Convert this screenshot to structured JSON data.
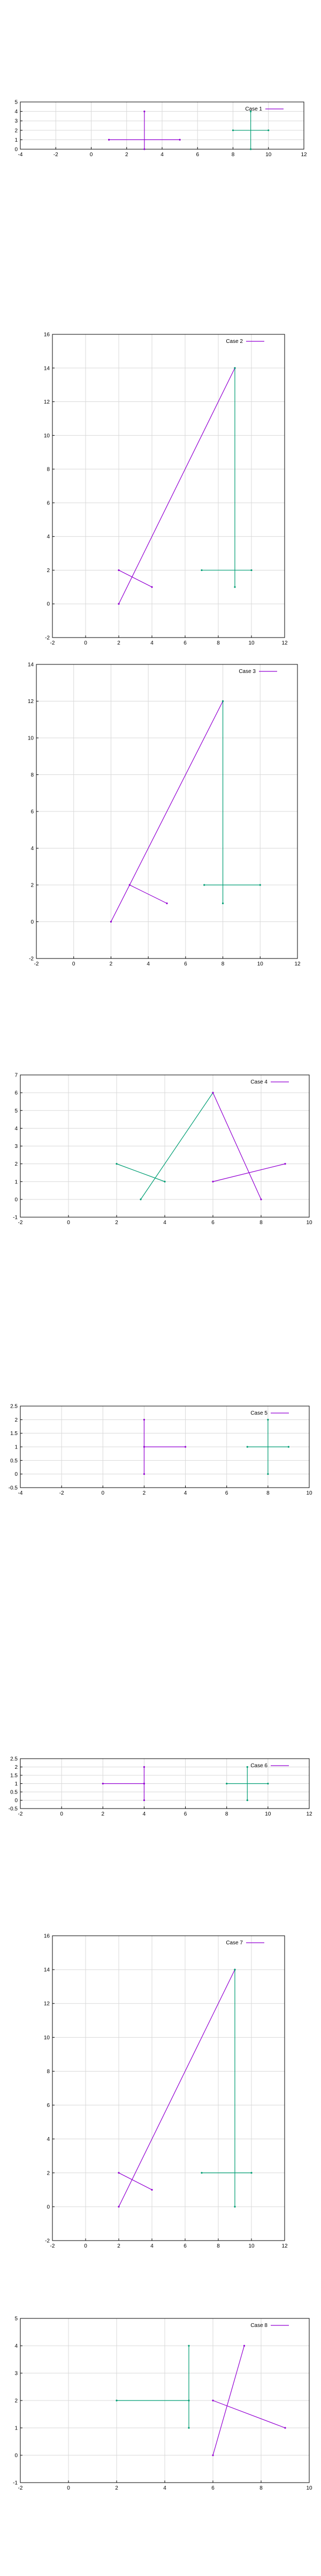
{
  "colors": {
    "magenta": "#9400d3",
    "teal": "#009e73",
    "grid": "#d9d9d9",
    "axis": "#000000"
  },
  "chart_data": [
    {
      "type": "line",
      "title": "Case 1",
      "legend": {
        "entries": [
          "Case 1"
        ],
        "placement": "top-right"
      },
      "xlim": [
        -4,
        12
      ],
      "ylim": [
        0,
        5
      ],
      "xticks": [
        -4,
        -2,
        0,
        2,
        4,
        6,
        8,
        10,
        12
      ],
      "yticks": [
        0,
        1,
        2,
        3,
        4,
        5
      ],
      "grid": true,
      "series": [
        {
          "color": "magenta",
          "points": [
            [
              1,
              1
            ],
            [
              5,
              1
            ]
          ]
        },
        {
          "color": "magenta",
          "points": [
            [
              3,
              0
            ],
            [
              3,
              4
            ]
          ]
        },
        {
          "color": "teal",
          "points": [
            [
              8,
              2
            ],
            [
              10,
              2
            ]
          ]
        },
        {
          "color": "teal",
          "points": [
            [
              9,
              0
            ],
            [
              9,
              4
            ]
          ]
        }
      ]
    },
    {
      "type": "line",
      "title": "Case 2",
      "legend": {
        "entries": [
          "Case 2"
        ],
        "placement": "top-right"
      },
      "xlim": [
        -2,
        12
      ],
      "ylim": [
        -2,
        16
      ],
      "xticks": [
        -2,
        0,
        2,
        4,
        6,
        8,
        10,
        12
      ],
      "yticks": [
        -2,
        0,
        2,
        4,
        6,
        8,
        10,
        12,
        14,
        16
      ],
      "grid": true,
      "series": [
        {
          "color": "magenta",
          "points": [
            [
              2,
              0
            ],
            [
              9,
              14
            ]
          ]
        },
        {
          "color": "magenta",
          "points": [
            [
              2,
              2
            ],
            [
              4,
              1
            ]
          ]
        },
        {
          "color": "teal",
          "points": [
            [
              9,
              1
            ],
            [
              9,
              14
            ]
          ]
        },
        {
          "color": "teal",
          "points": [
            [
              7,
              2
            ],
            [
              10,
              2
            ]
          ]
        }
      ]
    },
    {
      "type": "line",
      "title": "Case 3",
      "legend": {
        "entries": [
          "Case 3"
        ],
        "placement": "top-right"
      },
      "xlim": [
        -2,
        12
      ],
      "ylim": [
        -2,
        14
      ],
      "xticks": [
        -2,
        0,
        2,
        4,
        6,
        8,
        10,
        12
      ],
      "yticks": [
        -2,
        0,
        2,
        4,
        6,
        8,
        10,
        12,
        14
      ],
      "grid": true,
      "series": [
        {
          "color": "magenta",
          "points": [
            [
              2,
              0
            ],
            [
              8,
              12
            ]
          ]
        },
        {
          "color": "magenta",
          "points": [
            [
              3,
              2
            ],
            [
              5,
              1
            ]
          ]
        },
        {
          "color": "teal",
          "points": [
            [
              8,
              1
            ],
            [
              8,
              12
            ]
          ]
        },
        {
          "color": "teal",
          "points": [
            [
              7,
              2
            ],
            [
              10,
              2
            ]
          ]
        }
      ]
    },
    {
      "type": "line",
      "title": "Case 4",
      "legend": {
        "entries": [
          "Case 4"
        ],
        "placement": "top-right"
      },
      "xlim": [
        -2,
        10
      ],
      "ylim": [
        -1,
        7
      ],
      "xticks": [
        -2,
        0,
        2,
        4,
        6,
        8,
        10
      ],
      "yticks": [
        -1,
        0,
        1,
        2,
        3,
        4,
        5,
        6,
        7
      ],
      "grid": true,
      "series": [
        {
          "color": "teal",
          "points": [
            [
              3,
              0
            ],
            [
              6,
              6
            ]
          ]
        },
        {
          "color": "teal",
          "points": [
            [
              2,
              2
            ],
            [
              4,
              1
            ]
          ]
        },
        {
          "color": "magenta",
          "points": [
            [
              6,
              6
            ],
            [
              8,
              0
            ]
          ]
        },
        {
          "color": "magenta",
          "points": [
            [
              6,
              1
            ],
            [
              9,
              2
            ]
          ]
        }
      ]
    },
    {
      "type": "line",
      "title": "Case 5",
      "legend": {
        "entries": [
          "Case 5"
        ],
        "placement": "top-right"
      },
      "xlim": [
        -4,
        10
      ],
      "ylim": [
        -0.5,
        2.5
      ],
      "xticks": [
        -4,
        -2,
        0,
        2,
        4,
        6,
        8,
        10
      ],
      "yticks": [
        -0.5,
        0,
        0.5,
        1,
        1.5,
        2,
        2.5
      ],
      "grid": true,
      "series": [
        {
          "color": "magenta",
          "points": [
            [
              2,
              0
            ],
            [
              2,
              2
            ]
          ]
        },
        {
          "color": "magenta",
          "points": [
            [
              2,
              1
            ],
            [
              4,
              1
            ]
          ]
        },
        {
          "color": "teal",
          "points": [
            [
              8,
              0
            ],
            [
              8,
              2
            ]
          ]
        },
        {
          "color": "teal",
          "points": [
            [
              7,
              1
            ],
            [
              9,
              1
            ]
          ]
        }
      ]
    },
    {
      "type": "line",
      "title": "Case 6",
      "legend": {
        "entries": [
          "Case 6"
        ],
        "placement": "top-right"
      },
      "xlim": [
        -2,
        12
      ],
      "ylim": [
        -0.5,
        2.5
      ],
      "xticks": [
        -2,
        0,
        2,
        4,
        6,
        8,
        10,
        12
      ],
      "yticks": [
        -0.5,
        0,
        0.5,
        1,
        1.5,
        2,
        2.5
      ],
      "grid": true,
      "series": [
        {
          "color": "magenta",
          "points": [
            [
              2,
              1
            ],
            [
              4,
              1
            ]
          ]
        },
        {
          "color": "magenta",
          "points": [
            [
              4,
              0
            ],
            [
              4,
              2
            ]
          ]
        },
        {
          "color": "teal",
          "points": [
            [
              8,
              1
            ],
            [
              10,
              1
            ]
          ]
        },
        {
          "color": "teal",
          "points": [
            [
              9,
              0
            ],
            [
              9,
              2
            ]
          ]
        }
      ]
    },
    {
      "type": "line",
      "title": "Case 7",
      "legend": {
        "entries": [
          "Case 7"
        ],
        "placement": "top-right"
      },
      "xlim": [
        -2,
        12
      ],
      "ylim": [
        -2,
        16
      ],
      "xticks": [
        -2,
        0,
        2,
        4,
        6,
        8,
        10,
        12
      ],
      "yticks": [
        -2,
        0,
        2,
        4,
        6,
        8,
        10,
        12,
        14,
        16
      ],
      "grid": true,
      "series": [
        {
          "color": "magenta",
          "points": [
            [
              2,
              0
            ],
            [
              9,
              14
            ]
          ]
        },
        {
          "color": "magenta",
          "points": [
            [
              2,
              2
            ],
            [
              4,
              1
            ]
          ]
        },
        {
          "color": "teal",
          "points": [
            [
              9,
              0
            ],
            [
              9,
              14
            ]
          ]
        },
        {
          "color": "teal",
          "points": [
            [
              7,
              2
            ],
            [
              10,
              2
            ]
          ]
        }
      ]
    },
    {
      "type": "line",
      "title": "Case 8",
      "legend": {
        "entries": [
          "Case 8"
        ],
        "placement": "top-right"
      },
      "xlim": [
        -2,
        10
      ],
      "ylim": [
        -1,
        5
      ],
      "xticks": [
        -2,
        0,
        2,
        4,
        6,
        8,
        10
      ],
      "yticks": [
        -1,
        0,
        1,
        2,
        3,
        4,
        5
      ],
      "grid": true,
      "series": [
        {
          "color": "teal",
          "points": [
            [
              2,
              2
            ],
            [
              5,
              2
            ]
          ]
        },
        {
          "color": "teal",
          "points": [
            [
              5,
              1
            ],
            [
              5,
              4
            ]
          ]
        },
        {
          "color": "magenta",
          "points": [
            [
              6,
              0
            ],
            [
              7.3,
              4
            ]
          ]
        },
        {
          "color": "magenta",
          "points": [
            [
              6,
              2
            ],
            [
              9,
              1
            ]
          ]
        }
      ]
    }
  ]
}
